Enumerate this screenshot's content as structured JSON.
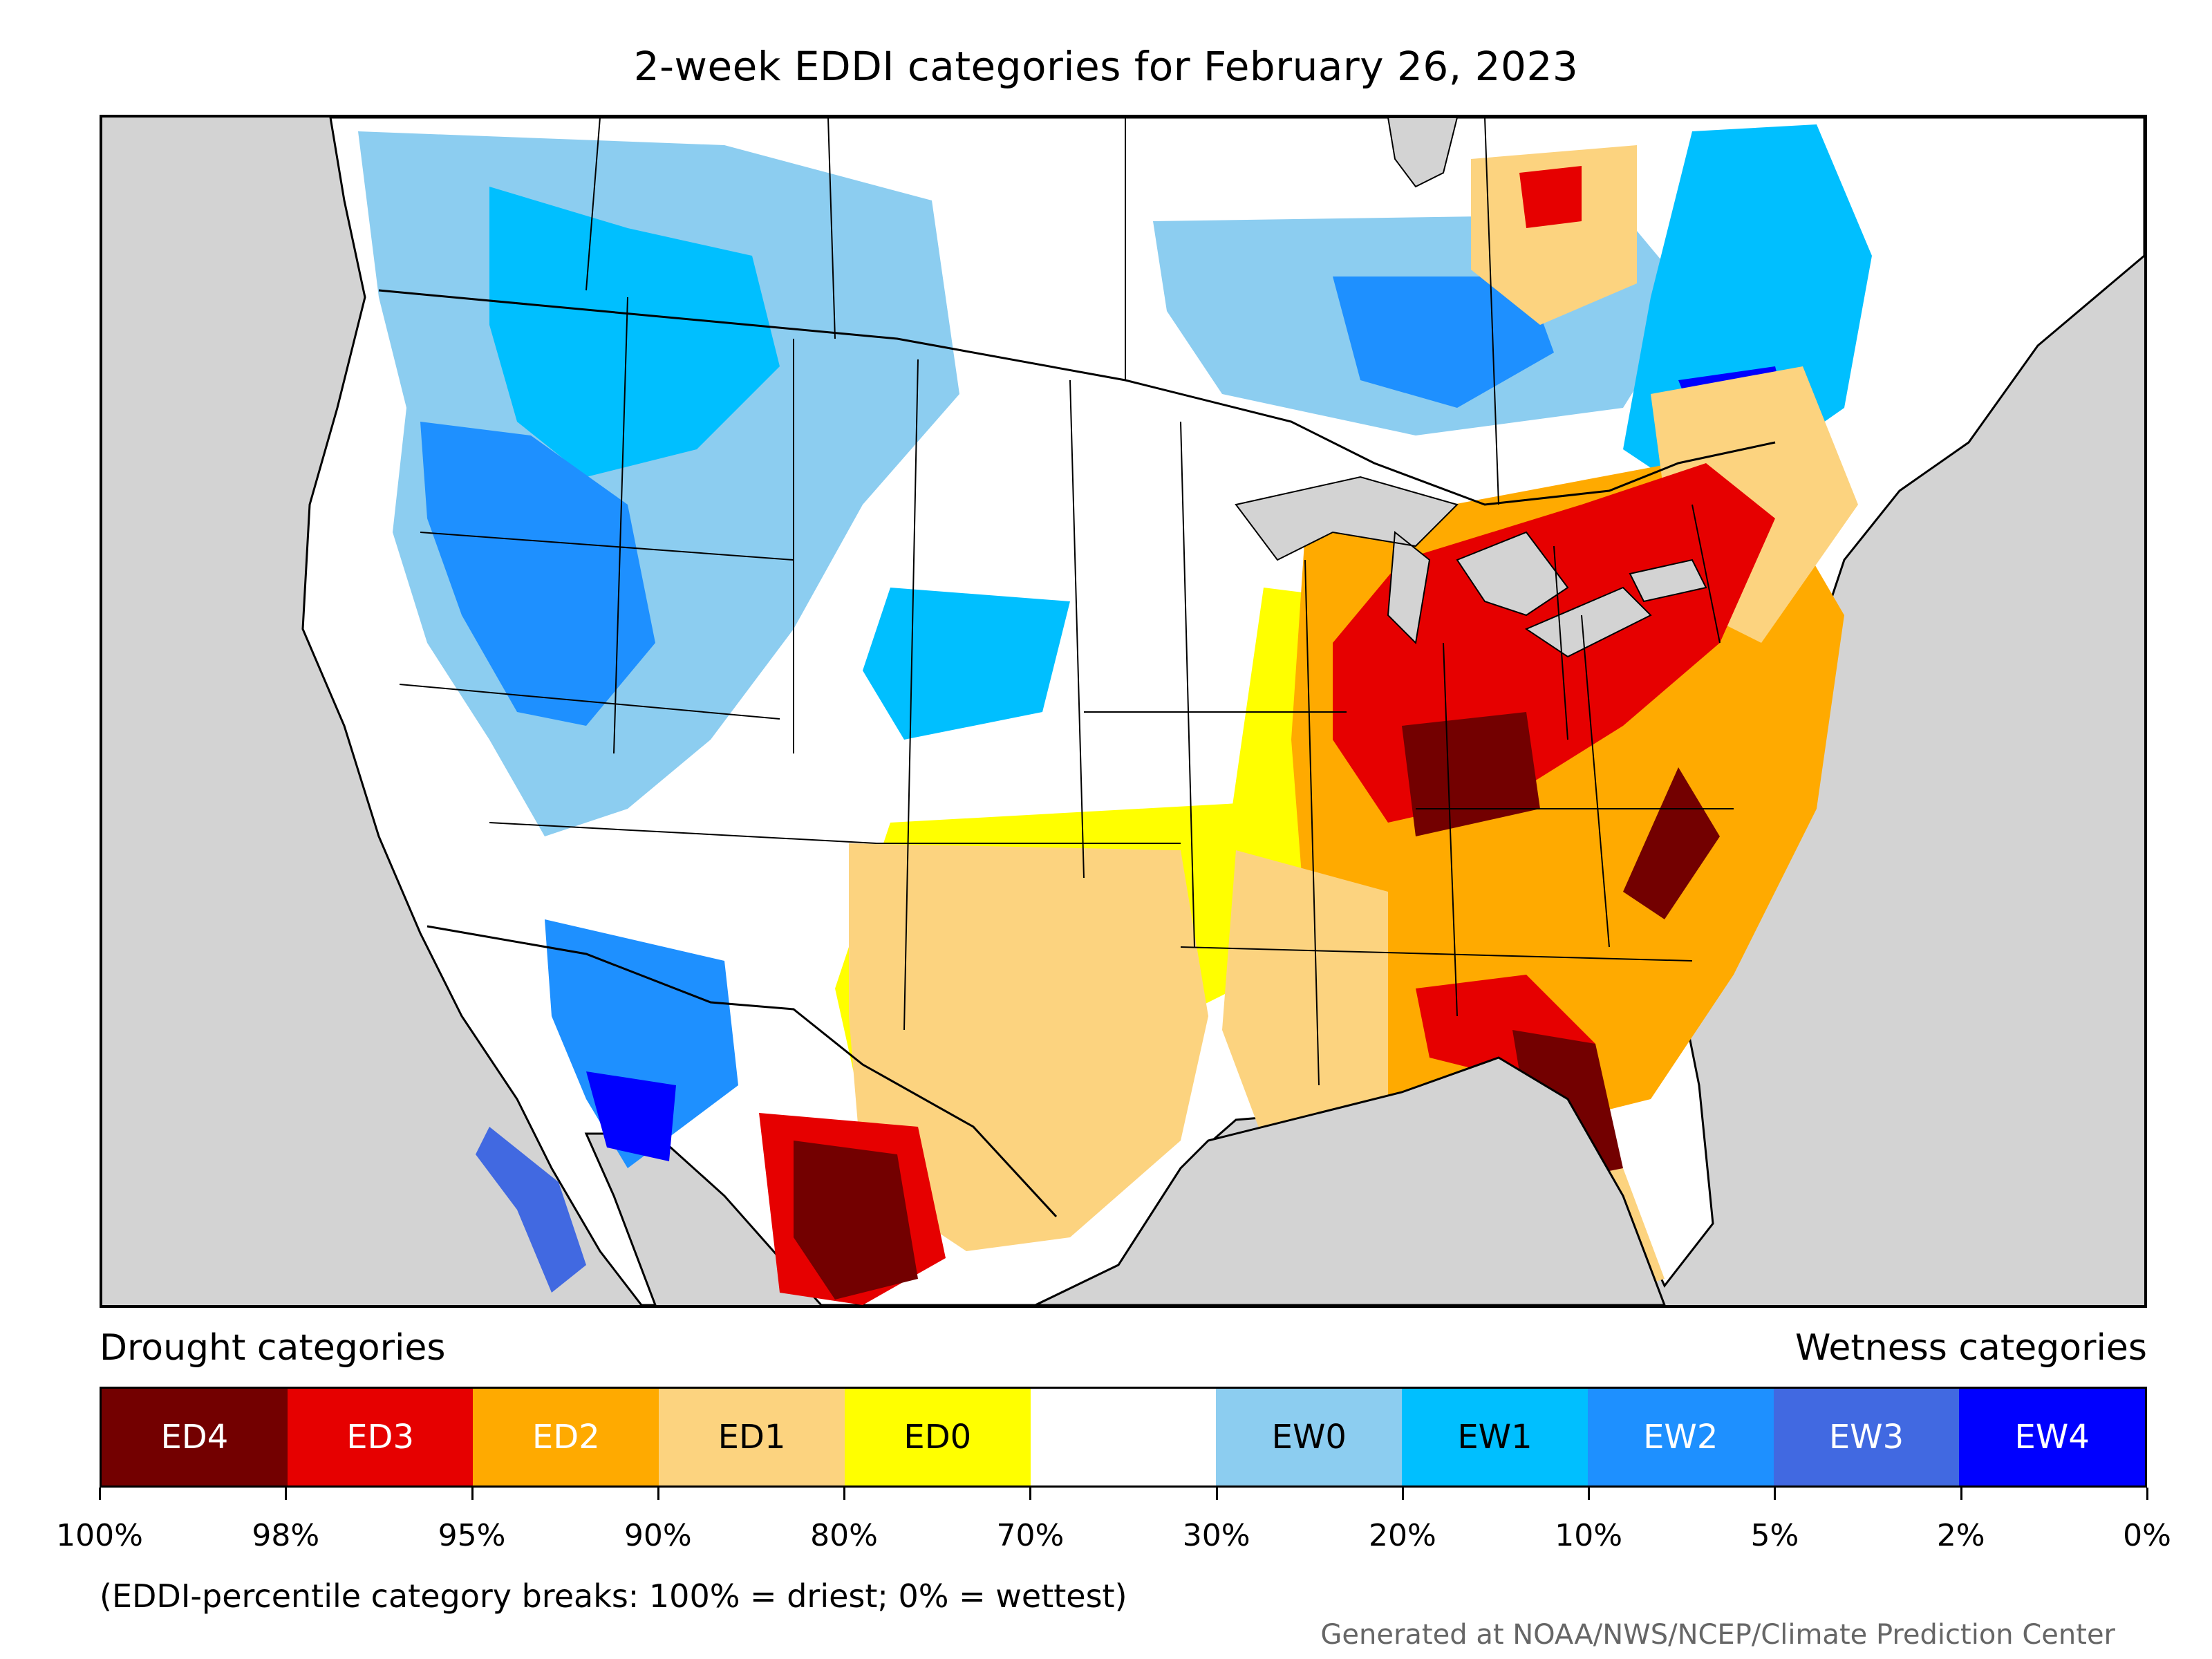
{
  "title": "2-week EDDI categories for February 26, 2023",
  "legend": {
    "drought_label": "Drought categories",
    "wetness_label": "Wetness categories",
    "categories": [
      {
        "label": "ED4",
        "color": "#730000",
        "text_color": "#ffffff"
      },
      {
        "label": "ED3",
        "color": "#e60000",
        "text_color": "#ffffff"
      },
      {
        "label": "ED2",
        "color": "#ffaa00",
        "text_color": "#ffffff"
      },
      {
        "label": "ED1",
        "color": "#fcd37f",
        "text_color": "#000000"
      },
      {
        "label": "ED0",
        "color": "#ffff00",
        "text_color": "#000000"
      },
      {
        "label": "",
        "color": "#ffffff",
        "text_color": "#000000"
      },
      {
        "label": "EW0",
        "color": "#8ccdf0",
        "text_color": "#000000"
      },
      {
        "label": "EW1",
        "color": "#00bfff",
        "text_color": "#000000"
      },
      {
        "label": "EW2",
        "color": "#1e90ff",
        "text_color": "#ffffff"
      },
      {
        "label": "EW3",
        "color": "#4169e1",
        "text_color": "#ffffff"
      },
      {
        "label": "EW4",
        "color": "#0000ff",
        "text_color": "#ffffff"
      }
    ],
    "tick_labels": [
      "100%",
      "98%",
      "95%",
      "90%",
      "80%",
      "70%",
      "30%",
      "20%",
      "10%",
      "5%",
      "2%",
      "0%"
    ],
    "note": "(EDDI-percentile category breaks: 100% = driest; 0% = wettest)"
  },
  "credit": "Generated at NOAA/NWS/NCEP/Climate Prediction Center"
}
